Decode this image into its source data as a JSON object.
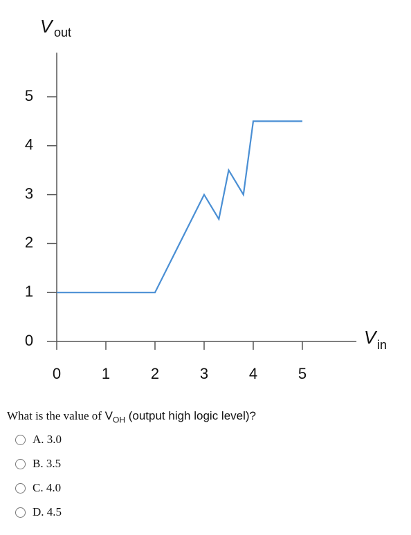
{
  "chart_data": {
    "type": "line",
    "ylabel": "V",
    "ylabel_sub": "out",
    "xlabel": "V",
    "xlabel_sub": "in",
    "x": [
      0,
      2,
      3,
      3.3,
      3.5,
      3.8,
      4,
      5
    ],
    "values": [
      1,
      1,
      3,
      2.5,
      3.5,
      3,
      4.5,
      4.5
    ],
    "color": "#4a8fd4",
    "xlim": [
      0,
      6.1
    ],
    "ylim": [
      0,
      5.9
    ],
    "xticks": [
      0,
      1,
      2,
      3,
      4,
      5
    ],
    "yticks": [
      0,
      1,
      2,
      3,
      4,
      5
    ]
  },
  "question": {
    "text": "What is the value of",
    "symbol": "V",
    "symbol_sub": "OH",
    "rest": "(output high logic level)?",
    "options": [
      "A. 3.0",
      "B. 3.5",
      "C. 4.0",
      "D. 4.5"
    ]
  }
}
